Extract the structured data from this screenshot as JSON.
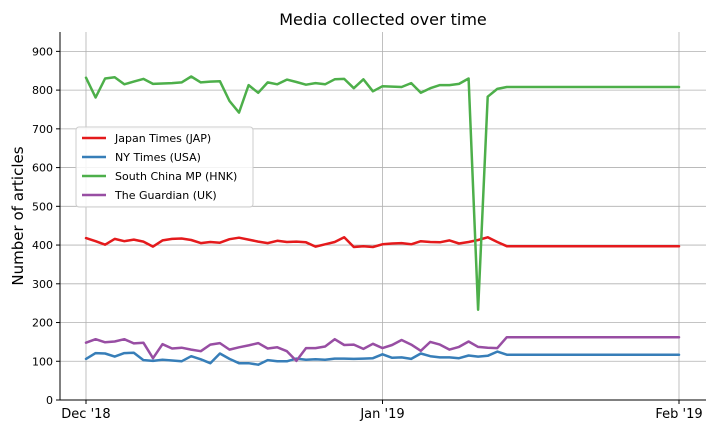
{
  "chart_data": {
    "type": "line",
    "title": "Media collected over time",
    "xlabel": "",
    "ylabel": "Number of articles",
    "ylim": [
      0,
      950
    ],
    "yticks": [
      0,
      100,
      200,
      300,
      400,
      500,
      600,
      700,
      800,
      900
    ],
    "x_axis": {
      "start": "2018-12-01",
      "end": "2019-02-01",
      "ticks": [
        {
          "date": "2018-12-01",
          "label": "Dec '18"
        },
        {
          "date": "2019-01-01",
          "label": "Jan '19"
        },
        {
          "date": "2019-02-01",
          "label": "Feb '19"
        }
      ]
    },
    "grid": true,
    "legend_position": "center-left",
    "x": [
      "2018-12-01",
      "2018-12-02",
      "2018-12-03",
      "2018-12-04",
      "2018-12-05",
      "2018-12-06",
      "2018-12-07",
      "2018-12-08",
      "2018-12-09",
      "2018-12-10",
      "2018-12-11",
      "2018-12-12",
      "2018-12-13",
      "2018-12-14",
      "2018-12-15",
      "2018-12-16",
      "2018-12-17",
      "2018-12-18",
      "2018-12-19",
      "2018-12-20",
      "2018-12-21",
      "2018-12-22",
      "2018-12-23",
      "2018-12-24",
      "2018-12-25",
      "2018-12-26",
      "2018-12-27",
      "2018-12-28",
      "2018-12-29",
      "2018-12-30",
      "2018-12-31",
      "2019-01-01",
      "2019-01-02",
      "2019-01-03",
      "2019-01-04",
      "2019-01-05",
      "2019-01-06",
      "2019-01-07",
      "2019-01-08",
      "2019-01-09",
      "2019-01-10",
      "2019-01-11",
      "2019-01-12",
      "2019-01-13",
      "2019-01-14",
      "2019-01-15",
      "2019-01-16",
      "2019-01-17",
      "2019-01-18",
      "2019-01-19",
      "2019-01-20",
      "2019-01-21",
      "2019-01-22",
      "2019-01-23",
      "2019-01-24",
      "2019-01-25",
      "2019-01-26",
      "2019-01-27",
      "2019-01-28",
      "2019-01-29",
      "2019-01-30",
      "2019-01-31",
      "2019-02-01"
    ],
    "series": [
      {
        "name": "Japan Times (JAP)",
        "color": "#e41a1c",
        "values": [
          418,
          410,
          401,
          416,
          410,
          414,
          409,
          396,
          412,
          416,
          417,
          413,
          405,
          408,
          406,
          415,
          419,
          414,
          409,
          405,
          411,
          408,
          409,
          407,
          396,
          402,
          408,
          420,
          395,
          397,
          395,
          402,
          404,
          405,
          402,
          410,
          408,
          407,
          412,
          404,
          408,
          413,
          420,
          408,
          397,
          397,
          397,
          397,
          397,
          397,
          397,
          397,
          397,
          397,
          397,
          397,
          397,
          397,
          397,
          397,
          397,
          397,
          397
        ]
      },
      {
        "name": "NY Times (USA)",
        "color": "#377eb8",
        "values": [
          106,
          121,
          120,
          112,
          121,
          122,
          103,
          101,
          104,
          102,
          100,
          113,
          105,
          95,
          120,
          106,
          95,
          95,
          91,
          103,
          100,
          100,
          107,
          104,
          105,
          104,
          107,
          107,
          106,
          107,
          108,
          118,
          109,
          110,
          106,
          120,
          113,
          110,
          110,
          108,
          115,
          112,
          114,
          125,
          117,
          117,
          117,
          117,
          117,
          117,
          117,
          117,
          117,
          117,
          117,
          117,
          117,
          117,
          117,
          117,
          117,
          117,
          117
        ]
      },
      {
        "name": "South China MP (HNK)",
        "color": "#4daf4a",
        "values": [
          832,
          781,
          830,
          833,
          815,
          822,
          829,
          816,
          817,
          818,
          820,
          835,
          820,
          822,
          823,
          772,
          742,
          813,
          793,
          820,
          815,
          827,
          821,
          814,
          818,
          815,
          828,
          829,
          805,
          828,
          797,
          810,
          809,
          808,
          818,
          793,
          805,
          813,
          813,
          816,
          830,
          233,
          783,
          803,
          808,
          808,
          808,
          808,
          808,
          808,
          808,
          808,
          808,
          808,
          808,
          808,
          808,
          808,
          808,
          808,
          808,
          808,
          808
        ]
      },
      {
        "name": "The Guardian (UK)",
        "color": "#984ea3",
        "values": [
          148,
          157,
          149,
          151,
          157,
          146,
          148,
          108,
          144,
          133,
          135,
          130,
          126,
          143,
          147,
          130,
          136,
          141,
          147,
          133,
          136,
          126,
          101,
          134,
          134,
          138,
          157,
          142,
          143,
          132,
          145,
          134,
          142,
          155,
          143,
          127,
          150,
          143,
          130,
          137,
          151,
          137,
          135,
          134,
          162,
          162,
          162,
          162,
          162,
          162,
          162,
          162,
          162,
          162,
          162,
          162,
          162,
          162,
          162,
          162,
          162,
          162,
          162
        ]
      }
    ]
  }
}
